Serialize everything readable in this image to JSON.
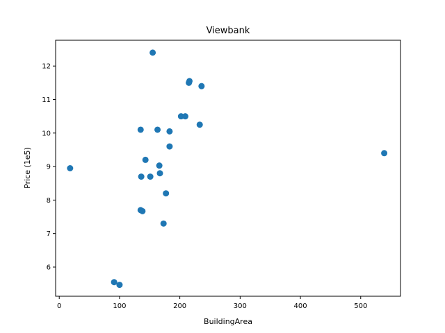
{
  "chart_data": {
    "type": "scatter",
    "title": "Viewbank",
    "xlabel": "BuildingArea",
    "ylabel": "Price (1e5)",
    "xlim": [
      -6,
      566
    ],
    "ylim": [
      5.13,
      12.77
    ],
    "xticks": [
      0,
      100,
      200,
      300,
      400,
      500
    ],
    "yticks": [
      6,
      7,
      8,
      9,
      10,
      11,
      12
    ],
    "grid": false,
    "legend": "none",
    "marker_color": "#1f77b4",
    "points": [
      {
        "x": 155,
        "y": 12.4
      },
      {
        "x": 216,
        "y": 11.55
      },
      {
        "x": 215,
        "y": 11.5
      },
      {
        "x": 236,
        "y": 11.4
      },
      {
        "x": 202,
        "y": 10.5
      },
      {
        "x": 209,
        "y": 10.5
      },
      {
        "x": 233,
        "y": 10.25
      },
      {
        "x": 135,
        "y": 10.1
      },
      {
        "x": 163,
        "y": 10.1
      },
      {
        "x": 183,
        "y": 10.05
      },
      {
        "x": 183,
        "y": 9.6
      },
      {
        "x": 539,
        "y": 9.4
      },
      {
        "x": 143,
        "y": 9.2
      },
      {
        "x": 166,
        "y": 9.03
      },
      {
        "x": 18,
        "y": 8.95
      },
      {
        "x": 167,
        "y": 8.8
      },
      {
        "x": 136,
        "y": 8.7
      },
      {
        "x": 151,
        "y": 8.7
      },
      {
        "x": 177,
        "y": 8.2
      },
      {
        "x": 135,
        "y": 7.7
      },
      {
        "x": 138,
        "y": 7.67
      },
      {
        "x": 173,
        "y": 7.3
      },
      {
        "x": 91,
        "y": 5.55
      },
      {
        "x": 100,
        "y": 5.47
      }
    ]
  }
}
